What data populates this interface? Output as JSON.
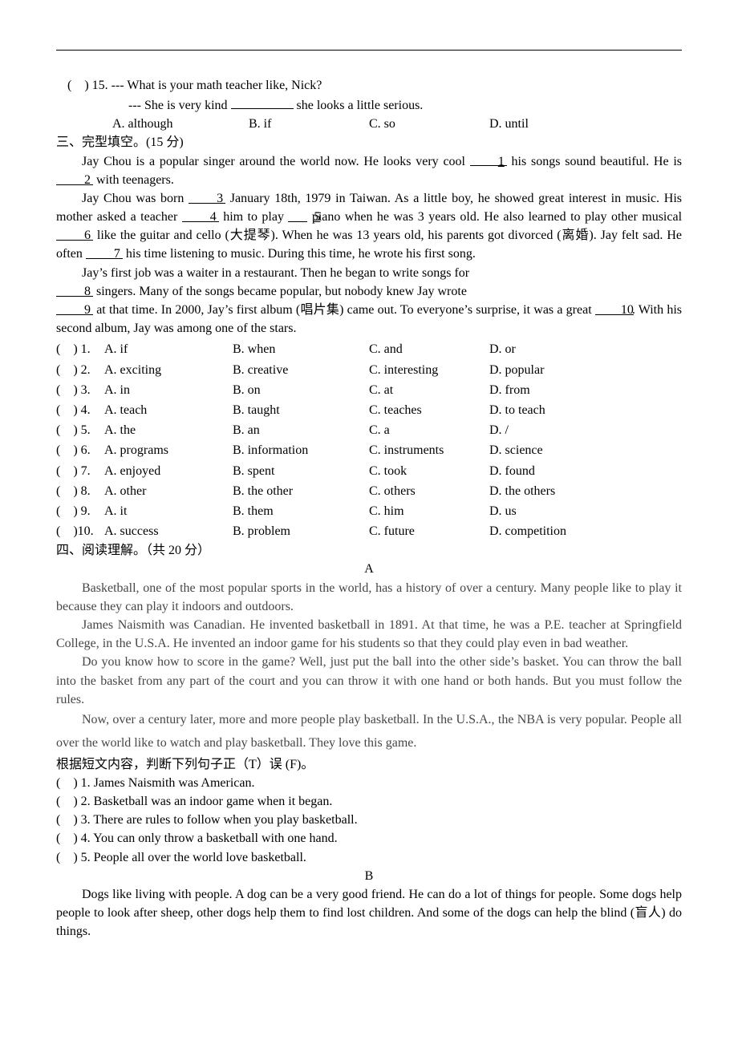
{
  "q15": {
    "num": "(    ) 15. --- What is your math teacher like, Nick?",
    "line2": "--- She is very kind",
    "line2b": "she looks a little serious.",
    "A": "A. although",
    "B": "B. if",
    "C": "C. so",
    "D": "D. until"
  },
  "section3": "三、完型填空。(15 分)",
  "cloze": {
    "p1a": "Jay Chou is a popular singer around the world now. He looks very cool ",
    "p1b": " his songs sound beautiful. He is ",
    "p1c": " with teenagers.",
    "p2a": "Jay Chou was born ",
    "p2b": " January 18th, 1979 in Taiwan. As a little boy, he showed great interest in music. His mother asked a teacher ",
    "p2c": " him to play ",
    "p2d": " piano when he was 3 years old. He also learned to play other musical ",
    "p2e": " like the guitar and cello (大提琴). When he was 13 years old, his parents got divorced (离婚). Jay felt sad. He often ",
    "p2f": " his time listening to music. During this time, he wrote his first song.",
    "p3a": "Jay’s first job was a waiter in a restaurant. Then he began to write songs for ",
    "p3b": " singers. Many of the songs became popular, but nobody knew Jay wrote ",
    "p3c": " at that time. In 2000, Jay’s first album (唱片集) came out. To everyone’s surprise, it was a great ",
    "p3d": ". With his second album, Jay was among one of the stars.",
    "b1": "1",
    "b2": "2",
    "b3": "3",
    "b4": "4",
    "b5": "5",
    "b6": "6",
    "b7": "7",
    "b8": "8",
    "b9": "9",
    "b10": "10"
  },
  "options": [
    {
      "num": "(    ) 1.",
      "A": "A. if",
      "B": "B. when",
      "C": "C. and",
      "D": "D. or"
    },
    {
      "num": "(    ) 2.",
      "A": "A. exciting",
      "B": "B. creative",
      "C": "C. interesting",
      "D": "D. popular"
    },
    {
      "num": "(    ) 3.",
      "A": "A. in",
      "B": "B. on",
      "C": "C. at",
      "D": "D. from"
    },
    {
      "num": "(    ) 4.",
      "A": "A. teach",
      "B": "B. taught",
      "C": "C. teaches",
      "D": "D. to teach"
    },
    {
      "num": "(    ) 5.",
      "A": "A. the",
      "B": "B. an",
      "C": "C. a",
      "D": "D. /"
    },
    {
      "num": "(    ) 6.",
      "A": "A. programs",
      "B": "B. information",
      "C": "C. instruments",
      "D": "D. science"
    },
    {
      "num": "(    ) 7.",
      "A": "A. enjoyed",
      "B": "B. spent",
      "C": "C. took",
      "D": "D. found"
    },
    {
      "num": "(    ) 8.",
      "A": "A. other",
      "B": "B. the other",
      "C": "C. others",
      "D": "D. the others"
    },
    {
      "num": "(    ) 9.",
      "A": "A. it",
      "B": "B. them",
      "C": "C. him",
      "D": "D. us"
    },
    {
      "num": "(    )10.",
      "A": "A. success",
      "B": "B. problem",
      "C": "C. future",
      "D": "D. competition"
    }
  ],
  "section4": "四、阅读理解。（共 20 分）",
  "labelA": "A",
  "passageA": {
    "p1": "Basketball, one of the most popular sports in the world, has a history of over a century. Many people like to play it because they can play it indoors and outdoors.",
    "p2": "James Naismith was Canadian. He invented basketball in 1891. At that time, he was a P.E. teacher at Springfield College, in the U.S.A. He invented an indoor game for his students so that they could play even in bad weather.",
    "p3": "Do you know how to score in the game? Well, just put the ball into the other side’s basket. You can throw the ball into the basket from any part of the court and you can throw it with one hand or both hands. But you must follow the rules.",
    "p4": "Now, over a century later, more and more people play basketball. In the U.S.A., the NBA is very popular. People all over the world like to watch and play basketball. They love this game."
  },
  "tfInstr": "根据短文内容，判断下列句子正（T）误 (F)。",
  "tf": [
    "(    ) 1. James Naismith was American.",
    "(    ) 2. Basketball was an indoor game when it began.",
    "(    ) 3. There are rules to follow when you play basketball.",
    "(    ) 4. You can only throw a basketball with one hand.",
    "(    ) 5. People all over the world love basketball."
  ],
  "labelB": "B",
  "passageB": {
    "p1": "Dogs like living with people. A dog can be a very good friend. He can do a lot of things for people. Some dogs help people to look after sheep, other dogs help them to find lost children. And some of the dogs can help the blind (盲人) do things."
  }
}
